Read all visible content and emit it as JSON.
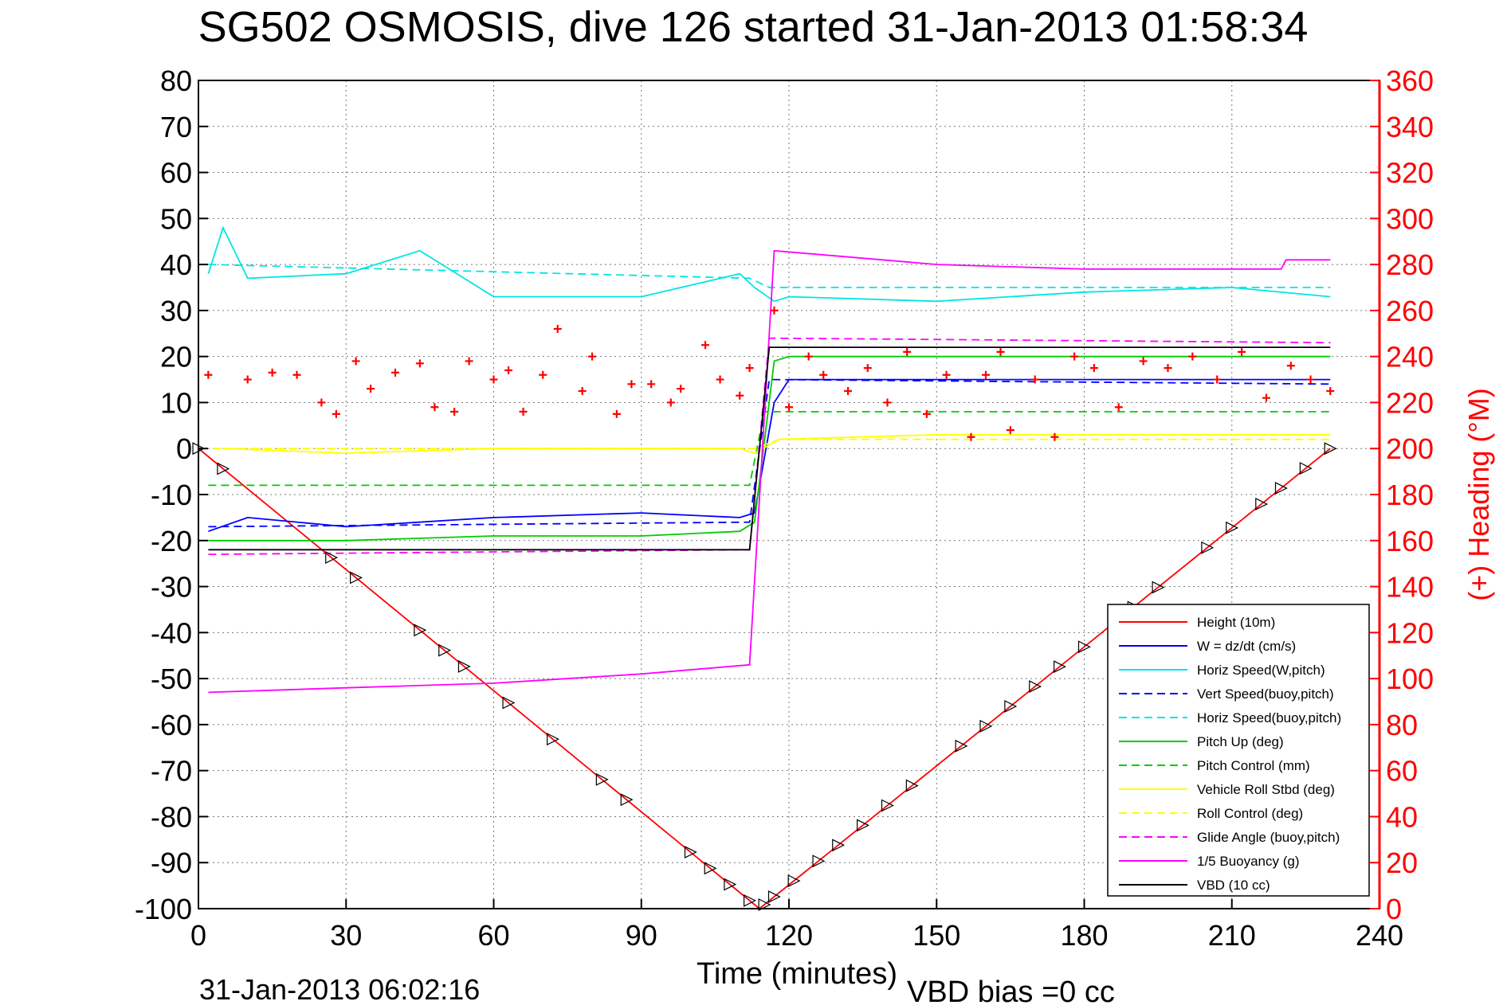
{
  "chart_data": {
    "type": "line",
    "title": "SG502 OSMOSIS, dive 126 started 31-Jan-2013 01:58:34",
    "xlabel": "Time (minutes)",
    "ylabel_right": "(+) Heading (°M)",
    "footer_left": "31-Jan-2013 06:02:16",
    "footer_right": "VBD bias =0 cc",
    "xlim": [
      0,
      240
    ],
    "ylim": [
      -100,
      80
    ],
    "ylim_right": [
      0,
      360
    ],
    "xticks": [
      0,
      30,
      60,
      90,
      120,
      150,
      180,
      210,
      240
    ],
    "yticks": [
      80,
      70,
      60,
      50,
      40,
      30,
      20,
      10,
      0,
      -10,
      -20,
      -30,
      -40,
      -50,
      -60,
      -70,
      -80,
      -90,
      -100
    ],
    "yticks_right": [
      360,
      340,
      320,
      300,
      280,
      260,
      240,
      220,
      200,
      180,
      160,
      140,
      120,
      100,
      80,
      60,
      40,
      20,
      0
    ],
    "grid": true,
    "legend_position": "bottom-right",
    "colors": {
      "height": "#ff0000",
      "w": "#0000ff",
      "horiz_speed": "#00e5e5",
      "pitch": "#00cc00",
      "roll": "#ffff00",
      "glide": "#ff00ff",
      "buoyancy": "#ff00ff",
      "vbd": "#000000",
      "heading": "#ff0000",
      "right_axis": "#ff0000"
    },
    "legend": [
      {
        "label": "Height (10m)",
        "color": "#ff0000",
        "dash": "solid"
      },
      {
        "label": "W = dz/dt (cm/s)",
        "color": "#0000ff",
        "dash": "solid"
      },
      {
        "label": "Horiz Speed(W,pitch)",
        "color": "#00e5e5",
        "dash": "solid"
      },
      {
        "label": "Vert Speed(buoy,pitch)",
        "color": "#0000ff",
        "dash": "dashed"
      },
      {
        "label": "Horiz Speed(buoy,pitch)",
        "color": "#00e5e5",
        "dash": "dashed"
      },
      {
        "label": "Pitch Up (deg)",
        "color": "#00cc00",
        "dash": "solid"
      },
      {
        "label": "Pitch Control (mm)",
        "color": "#00cc00",
        "dash": "dashed"
      },
      {
        "label": "Vehicle Roll Stbd (deg)",
        "color": "#ffff00",
        "dash": "solid"
      },
      {
        "label": "Roll Control (deg)",
        "color": "#ffff00",
        "dash": "dashed"
      },
      {
        "label": "Glide Angle (buoy,pitch)",
        "color": "#ff00ff",
        "dash": "dashed"
      },
      {
        "label": "1/5 Buoyancy (g)",
        "color": "#ff00ff",
        "dash": "solid"
      },
      {
        "label": "VBD (10 cc)",
        "color": "#000000",
        "dash": "solid"
      }
    ],
    "series": [
      {
        "name": "Height (10m)",
        "x": [
          0,
          114,
          230
        ],
        "y": [
          0,
          -100,
          0
        ]
      },
      {
        "name": "W = dz/dt (cm/s)",
        "x": [
          2,
          10,
          30,
          60,
          90,
          110,
          113,
          117,
          120,
          150,
          180,
          210,
          230
        ],
        "y": [
          -18,
          -15,
          -17,
          -15,
          -14,
          -15,
          -14,
          10,
          15,
          15,
          15,
          15,
          15
        ]
      },
      {
        "name": "Horiz Speed(W,pitch)",
        "x": [
          2,
          5,
          10,
          30,
          45,
          60,
          90,
          110,
          113,
          117,
          120,
          150,
          180,
          210,
          230
        ],
        "y": [
          38,
          48,
          37,
          38,
          43,
          33,
          33,
          38,
          35,
          32,
          33,
          32,
          34,
          35,
          33
        ]
      },
      {
        "name": "Vert Speed(buoy,pitch)",
        "x": [
          2,
          112,
          116,
          230
        ],
        "y": [
          -17,
          -16,
          15,
          14
        ]
      },
      {
        "name": "Horiz Speed(buoy,pitch)",
        "x": [
          2,
          112,
          116,
          230
        ],
        "y": [
          40,
          37,
          35,
          35
        ]
      },
      {
        "name": "Pitch Up (deg)",
        "x": [
          2,
          30,
          60,
          90,
          110,
          113,
          117,
          120,
          150,
          180,
          210,
          230
        ],
        "y": [
          -20,
          -20,
          -19,
          -19,
          -18,
          -16,
          19,
          20,
          20,
          20,
          20,
          20
        ]
      },
      {
        "name": "Pitch Control (mm)",
        "x": [
          2,
          112,
          115,
          230
        ],
        "y": [
          -8,
          -8,
          8,
          8
        ]
      },
      {
        "name": "Vehicle Roll Stbd (deg)",
        "x": [
          5,
          30,
          60,
          90,
          110,
          113,
          118,
          150,
          180,
          210,
          230
        ],
        "y": [
          0,
          -1,
          0,
          0,
          0,
          -1,
          2,
          3,
          3,
          3,
          3
        ]
      },
      {
        "name": "Roll Control (deg)",
        "x": [
          3,
          113,
          118,
          230
        ],
        "y": [
          0,
          0,
          2,
          2
        ]
      },
      {
        "name": "Glide Angle (buoy,pitch)",
        "x": [
          2,
          112,
          116,
          230
        ],
        "y": [
          -23,
          -22,
          24,
          23
        ]
      },
      {
        "name": "1/5 Buoyancy (g)",
        "x": [
          2,
          30,
          60,
          90,
          112,
          117,
          150,
          180,
          220,
          221,
          230
        ],
        "y": [
          -53,
          -52,
          -51,
          -49,
          -47,
          43,
          40,
          39,
          39,
          41,
          41
        ]
      },
      {
        "name": "VBD (10 cc)",
        "x": [
          2,
          112,
          116,
          230
        ],
        "y": [
          -22,
          -22,
          22,
          22
        ]
      },
      {
        "name": "(+) Heading (°M)",
        "x": [
          2,
          10,
          15,
          20,
          25,
          28,
          32,
          35,
          40,
          45,
          48,
          52,
          55,
          60,
          63,
          66,
          70,
          73,
          78,
          80,
          85,
          88,
          92,
          96,
          98,
          103,
          106,
          110,
          112,
          117,
          120,
          124,
          127,
          132,
          136,
          140,
          144,
          148,
          152,
          157,
          160,
          163,
          165,
          170,
          174,
          178,
          182,
          187,
          192,
          197,
          202,
          207,
          212,
          217,
          222,
          226,
          230
        ],
        "y": [
          232,
          230,
          233,
          232,
          220,
          215,
          238,
          226,
          233,
          237,
          218,
          216,
          238,
          230,
          234,
          216,
          232,
          252,
          225,
          240,
          215,
          228,
          228,
          220,
          226,
          245,
          230,
          223,
          235,
          260,
          218,
          240,
          232,
          225,
          235,
          220,
          242,
          215,
          232,
          205,
          232,
          242,
          208,
          230,
          205,
          240,
          235,
          218,
          238,
          235,
          240,
          230,
          242,
          222,
          236,
          230,
          225
        ]
      }
    ],
    "vbd_markers_x": [
      0,
      5,
      27,
      32,
      45,
      50,
      54,
      63,
      72,
      82,
      87,
      100,
      104,
      108,
      112,
      115,
      117,
      121,
      126,
      130,
      135,
      140,
      145,
      155,
      160,
      165,
      170,
      175,
      180,
      190,
      195,
      205,
      210,
      216,
      220,
      225,
      230
    ]
  }
}
